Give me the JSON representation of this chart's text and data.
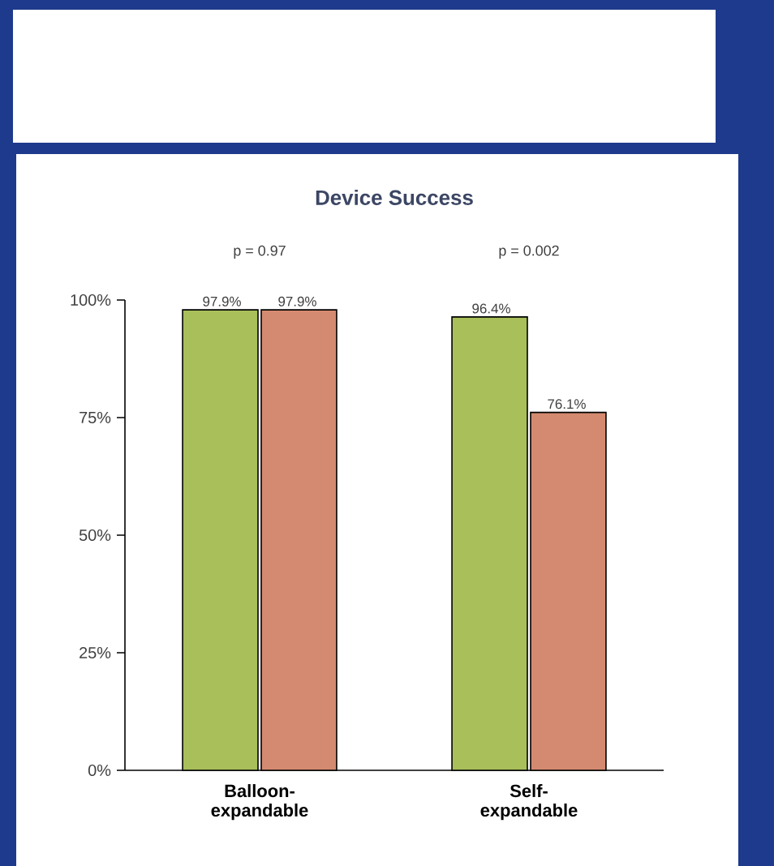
{
  "chart_data": {
    "type": "bar",
    "title": "Device Success",
    "categories": [
      "Balloon-expandable",
      "Self-expandable"
    ],
    "series": [
      {
        "color": "#a8bf5a",
        "values": [
          97.9,
          96.4
        ],
        "value_labels": [
          "97.9%",
          "96.4%"
        ]
      },
      {
        "color": "#d48a70",
        "values": [
          97.9,
          76.1
        ],
        "value_labels": [
          "97.9%",
          "76.1%"
        ]
      }
    ],
    "ylim": [
      0,
      100
    ],
    "yticks": [
      {
        "value": 0,
        "label": "0%"
      },
      {
        "value": 25,
        "label": "25%"
      },
      {
        "value": 50,
        "label": "50%"
      },
      {
        "value": 75,
        "label": "75%"
      },
      {
        "value": 100,
        "label": "100%"
      }
    ],
    "annotations": [
      "p = 0.97",
      "p = 0.002"
    ],
    "grid": false,
    "legend": false
  }
}
